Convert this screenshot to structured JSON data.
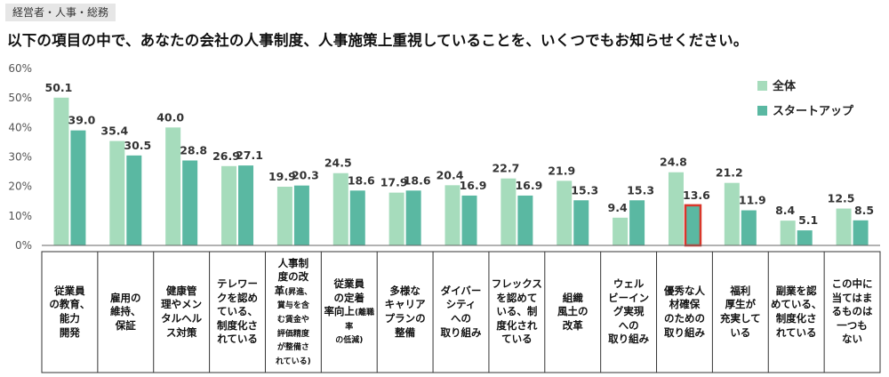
{
  "header": {
    "tag": "経営者・人事・総務",
    "title": "以下の項目の中で、あなたの会社の人事制度、人事施策上重視していることを、いくつでもお知らせください。"
  },
  "colors": {
    "overall": "#a6dcbc",
    "startup": "#5ab8a2",
    "highlight": "#d9372b",
    "axis": "#666666",
    "grid": "#d9d9d9"
  },
  "chart_data": {
    "type": "bar",
    "title": "以下の項目の中で、あなたの会社の人事制度、人事施策上重視していることを、いくつでもお知らせください。",
    "ylim": [
      0,
      60
    ],
    "yticks": [
      "0%",
      "10%",
      "20%",
      "30%",
      "40%",
      "50%",
      "60%"
    ],
    "grid": false,
    "legend_position": "top-right",
    "highlight": {
      "series": 1,
      "category_index": 11
    },
    "categories": [
      {
        "main": "従業員\nの教育、\n能力\n開発",
        "sub": ""
      },
      {
        "main": "雇用の\n維持、\n保証",
        "sub": ""
      },
      {
        "main": "健康管\n理やメン\nタルヘル\nス対策",
        "sub": ""
      },
      {
        "main": "テレワー\nクを認め\nている、\n制度化さ\nれている",
        "sub": ""
      },
      {
        "main": "人事制\n度の改\n革",
        "sub": "(昇進、\n賞与を含\nむ賃金や\n評価精度\nが整備さ\nれている)"
      },
      {
        "main": "従業員\nの定着\n率向上",
        "sub": "(離職率\nの低減)"
      },
      {
        "main": "多様な\nキャリア\nプランの\n整備",
        "sub": ""
      },
      {
        "main": "ダイバー\nシティ\nへの\n取り組み",
        "sub": ""
      },
      {
        "main": "フレックス\nを認めて\nいる、制\n度化され\nている",
        "sub": ""
      },
      {
        "main": "組織\n風土の\n改革",
        "sub": ""
      },
      {
        "main": "ウェル\nビーイン\nグ実現\nへの\n取り組み",
        "sub": ""
      },
      {
        "main": "優秀な人\n材確保\nのための\n取り組み",
        "sub": ""
      },
      {
        "main": "福利\n厚生が\n充実して\nいる",
        "sub": ""
      },
      {
        "main": "副業を認\nめている、\n制度化さ\nれている",
        "sub": ""
      },
      {
        "main": "この中に\n当てはま\nるものは\n一つも\nない",
        "sub": ""
      }
    ],
    "series": [
      {
        "name": "全体",
        "values": [
          50.1,
          35.4,
          40.0,
          26.9,
          19.9,
          24.5,
          17.9,
          20.4,
          22.7,
          21.9,
          9.4,
          24.8,
          21.2,
          8.4,
          12.5
        ],
        "labels": [
          "50.1",
          "35.4",
          "40.0",
          "26.9",
          "19.9",
          "24.5",
          "17.9",
          "20.4",
          "22.7",
          "21.9",
          "9.4",
          "24.8",
          "21.2",
          "8.4",
          "12.5"
        ]
      },
      {
        "name": "スタートアップ",
        "values": [
          39.0,
          30.5,
          28.8,
          27.1,
          20.3,
          18.6,
          18.6,
          16.9,
          16.9,
          15.3,
          15.3,
          13.6,
          11.9,
          5.1,
          8.5
        ],
        "labels": [
          "39.0",
          "30.5",
          "28.8",
          "27.1",
          "20.3",
          "18.6",
          "18.6",
          "16.9",
          "16.9",
          "15.3",
          "15.3",
          "13.6",
          "11.9",
          "5.1",
          "8.5"
        ]
      }
    ]
  }
}
